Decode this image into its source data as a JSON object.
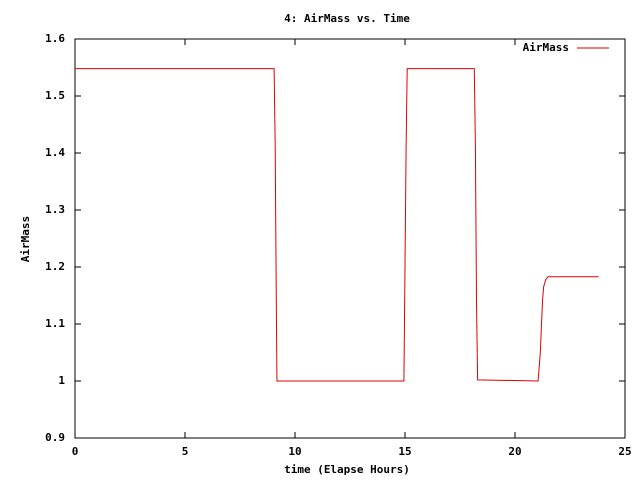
{
  "chart_data": {
    "type": "line",
    "title": "4: AirMass vs. Time",
    "xlabel": "time (Elapse Hours)",
    "ylabel": "AirMass",
    "x": [
      0,
      9.05,
      9.1,
      9.15,
      9.18,
      14.95,
      15.0,
      15.05,
      15.1,
      18.15,
      18.2,
      18.25,
      18.3,
      21.05,
      21.15,
      21.25,
      21.3,
      21.4,
      21.5,
      23.8
    ],
    "series": [
      {
        "name": "AirMass",
        "color": "#e00000",
        "values": [
          1.548,
          1.548,
          1.41,
          1.14,
          1.0,
          1.0,
          1.2,
          1.41,
          1.548,
          1.548,
          1.41,
          1.14,
          1.002,
          1.0,
          1.05,
          1.14,
          1.165,
          1.178,
          1.183,
          1.183
        ]
      }
    ],
    "xlim": [
      0,
      25
    ],
    "xticks": [
      0,
      5,
      10,
      15,
      20,
      25
    ],
    "ylim": [
      0.9,
      1.6
    ],
    "yticks": [
      0.9,
      1,
      1.1,
      1.2,
      1.3,
      1.4,
      1.5,
      1.6
    ],
    "grid": false,
    "legend": "top-right"
  }
}
